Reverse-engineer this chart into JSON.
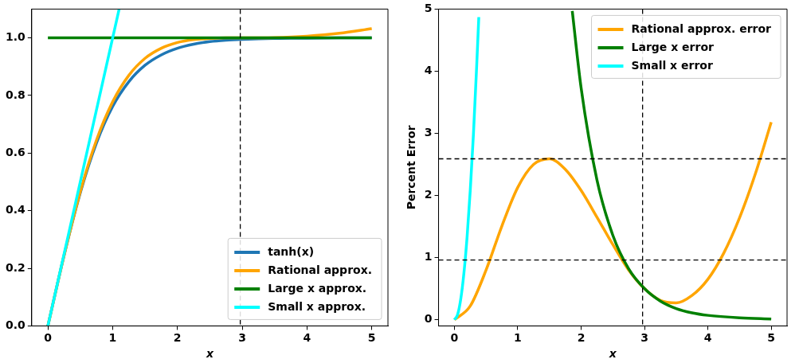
{
  "chart_data": [
    {
      "type": "line",
      "xlabel": "x",
      "xlim": [
        -0.25,
        5.25
      ],
      "ylim": [
        0,
        1.1
      ],
      "xticks": [
        0,
        1,
        2,
        3,
        4,
        5
      ],
      "yticks": [
        {
          "value": 0,
          "label": "0.0"
        },
        {
          "value": 0.2,
          "label": "0.2"
        },
        {
          "value": 0.4,
          "label": "0.4"
        },
        {
          "value": 0.6,
          "label": "0.6"
        },
        {
          "value": 0.8,
          "label": "0.8"
        },
        {
          "value": 1,
          "label": "1.0"
        }
      ],
      "grid": false,
      "legend": "bottom right",
      "marker": "none",
      "line_style": "solid",
      "ref_lines": [
        {
          "axis": "x",
          "value": 2.97,
          "color": "#000000",
          "line_style": "dashed"
        }
      ],
      "series": [
        {
          "name": "tanh(x)",
          "color": "#1f77b4",
          "x": [
            0,
            0.25,
            0.5,
            0.75,
            1,
            1.25,
            1.5,
            1.75,
            2,
            2.25,
            2.5,
            2.75,
            3,
            3.25,
            3.5,
            3.75,
            4,
            4.5,
            5
          ],
          "values": [
            0,
            0.245,
            0.462,
            0.635,
            0.762,
            0.848,
            0.905,
            0.941,
            0.964,
            0.978,
            0.987,
            0.992,
            0.995,
            0.997,
            0.998,
            0.999,
            0.999,
            1.0,
            1.0
          ]
        },
        {
          "name": "Rational approx.",
          "color": "#ffa500",
          "x": [
            0,
            0.25,
            0.5,
            0.75,
            1,
            1.25,
            1.5,
            1.75,
            2,
            2.25,
            2.5,
            2.75,
            3,
            3.5,
            4,
            4.5,
            5
          ],
          "values": [
            0,
            0.245,
            0.466,
            0.645,
            0.778,
            0.87,
            0.929,
            0.964,
            0.984,
            0.994,
            0.998,
            1.0,
            1.0,
            1.001,
            1.006,
            1.016,
            1.032
          ]
        },
        {
          "name": "Large x approx.",
          "color": "#008000",
          "x": [
            0,
            5
          ],
          "values": [
            1,
            1
          ]
        },
        {
          "name": "Small x approx.",
          "color": "#00ffff",
          "x": [
            0,
            1.1
          ],
          "values": [
            0,
            1.1
          ]
        }
      ]
    },
    {
      "type": "line",
      "xlabel": "x",
      "ylabel": "Percent Error",
      "xlim": [
        -0.25,
        5.25
      ],
      "ylim": [
        -0.1,
        5
      ],
      "xticks": [
        0,
        1,
        2,
        3,
        4,
        5
      ],
      "yticks": [
        0,
        1,
        2,
        3,
        4,
        5
      ],
      "grid": false,
      "legend": "top right",
      "marker": "none",
      "line_style": "solid",
      "ref_lines": [
        {
          "axis": "x",
          "value": 2.97,
          "color": "#000000",
          "line_style": "dashed"
        },
        {
          "axis": "y",
          "value": 2.59,
          "color": "#000000",
          "line_style": "dashed"
        },
        {
          "axis": "y",
          "value": 0.96,
          "color": "#000000",
          "line_style": "dashed"
        }
      ],
      "series": [
        {
          "name": "Rational approx. error",
          "color": "#ffa500",
          "x": [
            0,
            0.25,
            0.5,
            0.75,
            1,
            1.25,
            1.5,
            1.75,
            2,
            2.25,
            2.5,
            2.75,
            3,
            3.25,
            3.5,
            3.75,
            4,
            4.25,
            4.5,
            4.75,
            5
          ],
          "values": [
            0,
            0.22,
            0.8,
            1.51,
            2.13,
            2.5,
            2.59,
            2.42,
            2.08,
            1.65,
            1.21,
            0.8,
            0.5,
            0.31,
            0.27,
            0.39,
            0.65,
            1.07,
            1.64,
            2.35,
            3.18
          ]
        },
        {
          "name": "Large x error",
          "color": "#008000",
          "x": [
            1.86,
            2,
            2.25,
            2.5,
            2.75,
            3,
            3.25,
            3.5,
            3.75,
            4,
            4.5,
            5
          ],
          "values": [
            4.97,
            3.73,
            2.25,
            1.36,
            0.82,
            0.5,
            0.3,
            0.18,
            0.11,
            0.07,
            0.03,
            0.01
          ]
        },
        {
          "name": "Small x error",
          "color": "#00ffff",
          "x": [
            0,
            0.05,
            0.1,
            0.15,
            0.2,
            0.25,
            0.3,
            0.35,
            0.385
          ],
          "values": [
            0,
            0.08,
            0.33,
            0.75,
            1.33,
            2.08,
            2.98,
            4.05,
            4.87
          ]
        }
      ]
    }
  ]
}
